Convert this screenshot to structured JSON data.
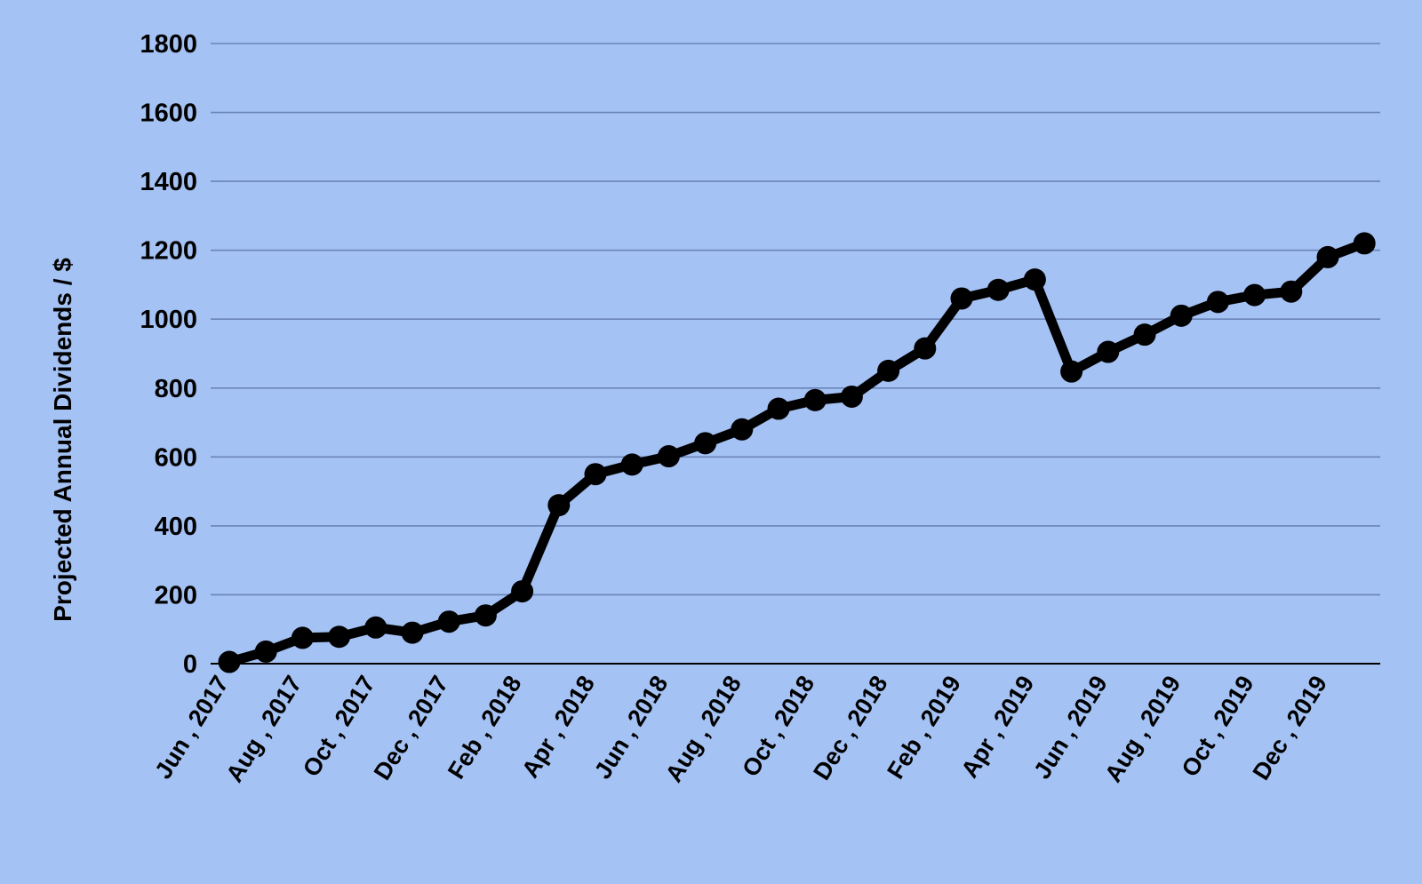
{
  "chart_data": {
    "type": "line",
    "title": "",
    "xlabel": "",
    "ylabel": "Projected Annual Dividends / $",
    "ylim": [
      0,
      1800
    ],
    "yticks": [
      0,
      200,
      400,
      600,
      800,
      1000,
      1200,
      1400,
      1600,
      1800
    ],
    "grid": true,
    "legend": "none",
    "x_tick_labels": [
      "Jun , 2017",
      "Aug , 2017",
      "Oct , 2017",
      "Dec , 2017",
      "Feb , 2018",
      "Apr , 2018",
      "Jun , 2018",
      "Aug , 2018",
      "Oct , 2018",
      "Dec , 2018",
      "Feb , 2019",
      "Apr , 2019",
      "Jun , 2019",
      "Aug , 2019",
      "Oct , 2019",
      "Dec , 2019"
    ],
    "x": [
      "Jun 2017",
      "Jul 2017",
      "Aug 2017",
      "Sep 2017",
      "Oct 2017",
      "Nov 2017",
      "Dec 2017",
      "Jan 2018",
      "Feb 2018",
      "Mar 2018",
      "Apr 2018",
      "May 2018",
      "Jun 2018",
      "Jul 2018",
      "Aug 2018",
      "Sep 2018",
      "Oct 2018",
      "Nov 2018",
      "Dec 2018",
      "Jan 2019",
      "Feb 2019",
      "Mar 2019",
      "Apr 2019",
      "May 2019",
      "Jun 2019",
      "Jul 2019",
      "Aug 2019",
      "Sep 2019",
      "Oct 2019",
      "Nov 2019",
      "Dec 2019",
      "Jan 2020"
    ],
    "series": [
      {
        "values": [
          5,
          35,
          75,
          78,
          105,
          90,
          122,
          140,
          210,
          460,
          550,
          578,
          602,
          640,
          680,
          740,
          765,
          775,
          850,
          915,
          1060,
          1085,
          1115,
          848,
          905,
          955,
          1010,
          1050,
          1070,
          1080,
          1180,
          1220
        ]
      }
    ],
    "colors": {
      "background": "#a4c2f4",
      "gridline": "#6b84b8",
      "axis": "#000000",
      "line": "#000000",
      "marker": "#000000"
    }
  }
}
